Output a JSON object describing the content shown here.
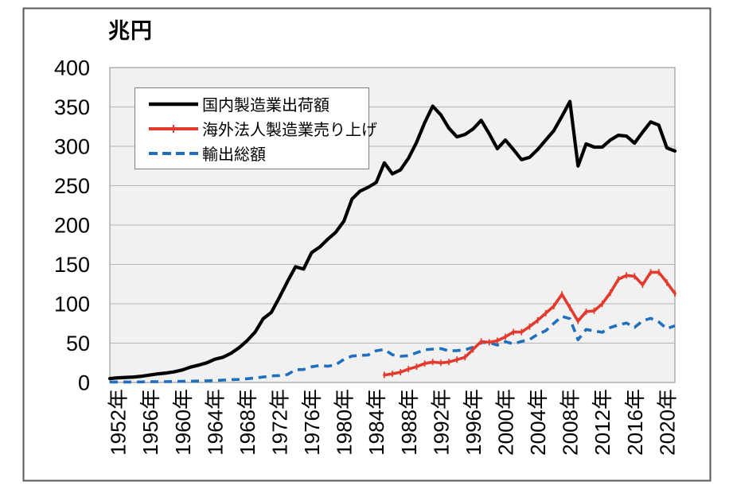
{
  "figure": {
    "unit_label": "兆円"
  },
  "legend": {
    "position": "top-left-inside",
    "items": [
      {
        "label": "国内製造業出荷額",
        "style": "solid",
        "color": "#000000"
      },
      {
        "label": "海外法人製造業売り上げ",
        "style": "solid-tick-markers",
        "color": "#e23a2d"
      },
      {
        "label": "輸出総額",
        "style": "dashed",
        "color": "#1e6fbe"
      }
    ]
  },
  "chart_data": {
    "type": "line",
    "title": "兆円",
    "xlabel": "",
    "ylabel": "兆円 (trillion yen)",
    "grid": true,
    "plot_background": "#f1f1f1",
    "gridline_color": "#b3b3b3",
    "border_color": "#5a5a5a",
    "x_axis": {
      "start": 1951,
      "end": 2021,
      "tick_start": 1952,
      "tick_end": 2020,
      "tick_step": 4,
      "tick_suffix": "年"
    },
    "y_axis": {
      "min": 0,
      "max": 400,
      "step": 50
    },
    "series": [
      {
        "name": "国内製造業出荷額",
        "color": "#000000",
        "style": "solid",
        "start_year": 1951,
        "values": [
          5,
          6,
          6.5,
          7,
          8,
          9.5,
          11,
          12,
          13.5,
          16,
          19.5,
          22,
          25,
          29.5,
          32,
          37,
          44,
          53,
          64,
          81,
          89,
          108,
          128,
          147,
          144,
          165,
          172,
          182,
          191,
          205,
          233,
          243,
          248,
          254,
          279,
          265,
          270,
          285,
          305,
          330,
          351,
          340,
          323,
          312,
          315,
          322,
          333,
          316,
          297,
          308,
          296,
          283,
          286,
          296,
          308,
          320,
          338,
          357,
          275,
          303,
          299,
          299,
          308,
          314,
          313,
          304,
          318,
          331,
          327,
          298,
          294
        ]
      },
      {
        "name": "海外法人製造業売り上げ",
        "color": "#e23a2d",
        "style": "solid-tick-markers",
        "start_year": 1985,
        "values": [
          9.5,
          11,
          13,
          17,
          20,
          24,
          26,
          25,
          26,
          29,
          32,
          42,
          52,
          51,
          53,
          58,
          64,
          64,
          71,
          79,
          88,
          97,
          112,
          95,
          78,
          90,
          91,
          100,
          114,
          131,
          136,
          135,
          124,
          140,
          140,
          127,
          113
        ]
      },
      {
        "name": "輸出総額",
        "color": "#1e6fbe",
        "style": "dashed",
        "start_year": 1951,
        "values": [
          0.5,
          0.6,
          0.6,
          0.6,
          0.7,
          0.9,
          1,
          1,
          1.2,
          1.5,
          1.6,
          1.8,
          2.1,
          2.4,
          3,
          3.5,
          3.8,
          4.7,
          5.8,
          7,
          8.4,
          8.8,
          10,
          16.2,
          16.5,
          19.9,
          21.6,
          20.6,
          22.5,
          29.4,
          33.5,
          34.4,
          34.9,
          40.3,
          41.9,
          35.3,
          33.3,
          33.9,
          37.8,
          41.5,
          42.4,
          43,
          40.2,
          40.5,
          41.5,
          44.7,
          50.9,
          50.6,
          47.5,
          51.7,
          49,
          52.1,
          54.5,
          61.2,
          65.7,
          75.2,
          83.9,
          81,
          54.2,
          67.4,
          65.5,
          63.7,
          69.8,
          73.1,
          75.6,
          70,
          78.3,
          81.5,
          76.9,
          68.4,
          72
        ]
      }
    ]
  }
}
